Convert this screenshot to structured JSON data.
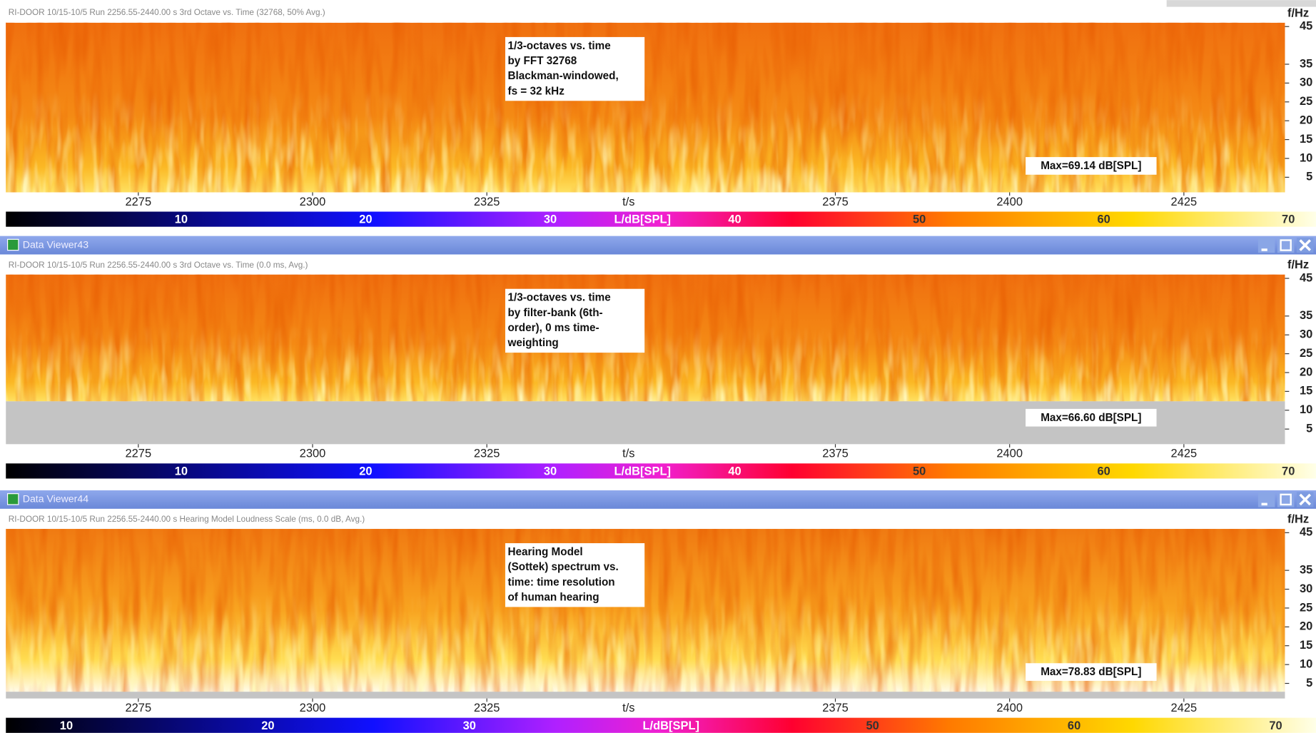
{
  "top_header": "RI-DOOR 10/15-10/5 Run 2256.55-2440.00 s 3rd Octave vs. Time (32768, 50% Avg.)",
  "x_axis": {
    "label": "t/s",
    "lim": [
      2256,
      2439.5
    ],
    "ticks": [
      2275,
      2300,
      2325,
      2375,
      2400,
      2425
    ]
  },
  "y_axis": {
    "label": "f/Hz",
    "lim": [
      1,
      46
    ],
    "ticks": [
      5,
      10,
      15,
      20,
      25,
      30,
      35,
      45
    ]
  },
  "panels": [
    {
      "annotation": [
        "1/3-octaves vs. time",
        "by FFT 32768",
        "Blackman-windowed,",
        "fs = 32 kHz"
      ],
      "max_label": "Max=69.14 dB[SPL]",
      "colorbar": {
        "label": "L/dB[SPL]",
        "lim": [
          0.5,
          71.5
        ],
        "ticks": [
          10,
          20,
          30,
          40,
          50,
          60,
          70
        ],
        "label_at": 35
      }
    },
    {
      "window_title": "Data Viewer43",
      "header": "RI-DOOR 10/15-10/5 Run 2256.55-2440.00 s 3rd Octave vs. Time (0.0 ms, Avg.)",
      "annotation": [
        "1/3-octaves vs. time",
        "by filter-bank (6th-",
        "order), 0 ms time-",
        "weighting"
      ],
      "max_label": "Max=66.60 dB[SPL]",
      "colorbar": {
        "label": "L/dB[SPL]",
        "lim": [
          0.5,
          71.5
        ],
        "ticks": [
          10,
          20,
          30,
          40,
          50,
          60,
          70
        ],
        "label_at": 35
      }
    },
    {
      "window_title": "Data Viewer44",
      "header": "RI-DOOR 10/15-10/5 Run 2256.55-2440.00 s Hearing Model Loudness Scale (ms, 0.0 dB, Avg.)",
      "annotation": [
        "Hearing Model",
        "(Sottek) spectrum vs.",
        "time: time resolution",
        "of human hearing"
      ],
      "max_label": "Max=78.83 dB[SPL]",
      "colorbar": {
        "label": "L/dB[SPL]",
        "lim": [
          7,
          72
        ],
        "ticks": [
          10,
          20,
          30,
          50,
          60,
          70
        ],
        "label_at": 40
      }
    }
  ]
}
